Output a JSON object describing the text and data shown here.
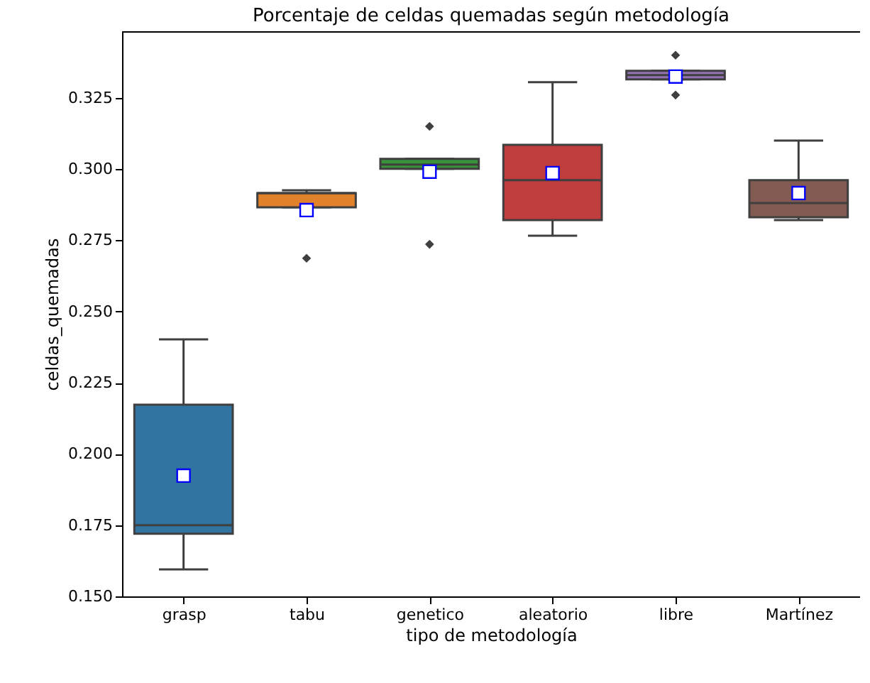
{
  "chart_data": {
    "type": "box",
    "title": "Porcentaje de celdas quemadas según metodología",
    "xlabel": "tipo de metodología",
    "ylabel": "celdas_quemadas",
    "categories": [
      "grasp",
      "tabu",
      "genetico",
      "aleatorio",
      "libre",
      "Martínez"
    ],
    "colors": [
      "#3274a1",
      "#e1812c",
      "#3a923a",
      "#c03d3e",
      "#9372b2",
      "#845b53"
    ],
    "boxes": [
      {
        "low": 0.1595,
        "q1": 0.172,
        "median": 0.175,
        "q3": 0.2173,
        "high": 0.2402,
        "mean": 0.1924
      },
      {
        "low": 0.2866,
        "q1": 0.2866,
        "median": 0.2916,
        "q3": 0.2916,
        "high": 0.2926,
        "mean": 0.2856,
        "outliers": [
          0.2687
        ]
      },
      {
        "low": 0.3001,
        "q1": 0.3001,
        "median": 0.3016,
        "q3": 0.3036,
        "high": 0.3036,
        "mean": 0.2991,
        "outliers": [
          0.315,
          0.2736
        ]
      },
      {
        "low": 0.2766,
        "q1": 0.2821,
        "median": 0.2961,
        "q3": 0.3085,
        "high": 0.3305,
        "mean": 0.2986
      },
      {
        "low": 0.3315,
        "q1": 0.3315,
        "median": 0.333,
        "q3": 0.3345,
        "high": 0.3345,
        "mean": 0.3325,
        "outliers": [
          0.34,
          0.326
        ]
      },
      {
        "low": 0.2821,
        "q1": 0.2831,
        "median": 0.2881,
        "q3": 0.2961,
        "high": 0.31,
        "mean": 0.2916
      }
    ],
    "ylim": [
      0.15,
      0.3484
    ],
    "yticks": [
      {
        "value": 0.15,
        "label": "0.150"
      },
      0.175,
      {
        "value": 0.2,
        "label": "0.200"
      },
      0.225,
      {
        "value": 0.25,
        "label": "0.250"
      },
      0.275,
      {
        "value": 0.3,
        "label": "0.300"
      },
      0.325
    ],
    "grid": false
  }
}
